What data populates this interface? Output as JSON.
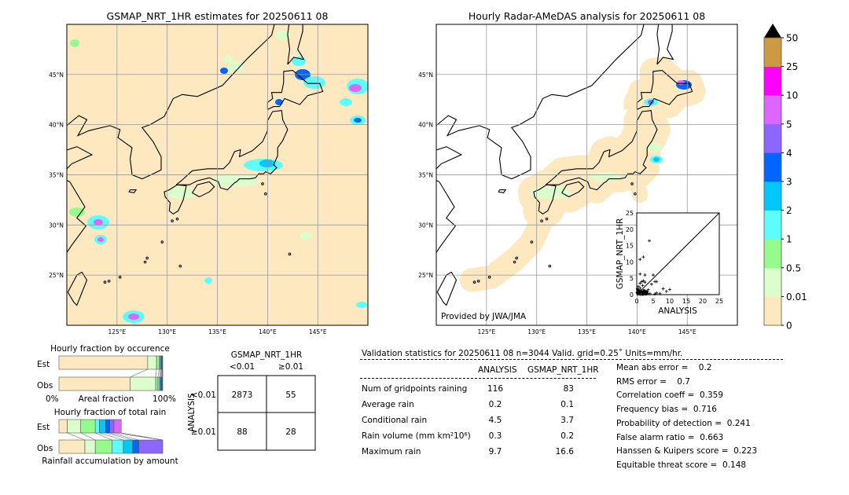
{
  "left_map": {
    "title": "GSMAP_NRT_1HR estimates for 20250611 08",
    "lon_labels": [
      "125°E",
      "130°E",
      "135°E",
      "140°E",
      "145°E"
    ],
    "lat_labels": [
      "45°N",
      "40°N",
      "35°N",
      "30°N",
      "25°N"
    ]
  },
  "right_map": {
    "title": "Hourly Radar-AMeDAS analysis for 20250611 08",
    "lon_labels": [
      "125°E",
      "130°E",
      "135°E",
      "140°E",
      "145°E"
    ],
    "lat_labels": [
      "45°N",
      "40°N",
      "35°N",
      "30°N",
      "25°N"
    ],
    "credit": "Provided by JWA/JMA"
  },
  "colorbar": {
    "labels": [
      "0",
      "0.01",
      "0.5",
      "1",
      "2",
      "3",
      "4",
      "5",
      "10",
      "25",
      "50"
    ],
    "colors": [
      "#fee8c0",
      "#dcfdcc",
      "#94fb8c",
      "#5dfdfd",
      "#00c8fd",
      "#0066ff",
      "#8c66ff",
      "#dd66ff",
      "#ff00ff",
      "#cd9a44"
    ],
    "extend_color": "#000000"
  },
  "chart_data": [
    {
      "type": "scatter",
      "xlabel": "ANALYSIS",
      "ylabel": "GSMAP_NRT_1HR",
      "xlim": [
        0,
        25
      ],
      "ylim": [
        0,
        25
      ],
      "ticks": [
        "0",
        "5",
        "10",
        "15",
        "20",
        "25"
      ],
      "points": [
        [
          1,
          10.8
        ],
        [
          2,
          11.5
        ],
        [
          3.8,
          16.5
        ],
        [
          1,
          6.3
        ],
        [
          2.5,
          6
        ],
        [
          5,
          6
        ],
        [
          1.5,
          4
        ],
        [
          2,
          4.2
        ],
        [
          2.5,
          3.8
        ],
        [
          5.5,
          4
        ],
        [
          6,
          4
        ],
        [
          1,
          3.5
        ],
        [
          4.5,
          3.2
        ],
        [
          8,
          1.8
        ],
        [
          10,
          1.6
        ],
        [
          9,
          1
        ],
        [
          6,
          0.5
        ],
        [
          3,
          0.8
        ],
        [
          1,
          2
        ],
        [
          0.5,
          1
        ],
        [
          0.3,
          0.5
        ],
        [
          2,
          0.5
        ],
        [
          1.5,
          0.2
        ],
        [
          4,
          0.3
        ],
        [
          7,
          0.3
        ],
        [
          0.5,
          2.5
        ],
        [
          1.2,
          1.2
        ],
        [
          0.8,
          0.3
        ],
        [
          2.8,
          0.2
        ],
        [
          3.5,
          1.5
        ],
        [
          0.2,
          1.8
        ],
        [
          1.8,
          2.8
        ],
        [
          5.5,
          0.2
        ],
        [
          0.4,
          0.1
        ],
        [
          1,
          0
        ]
      ]
    },
    {
      "type": "bar",
      "title": "Hourly fraction by occurence",
      "xlabel": "Areal fraction",
      "xtick_left": "0%",
      "xtick_right": "100%",
      "categories": [
        "Est",
        "Obs"
      ],
      "series_colors": [
        "#fee8c0",
        "#dcfdcc",
        "#94fb8c",
        "#5dfdfd",
        "#00c8fd",
        "#0066ff",
        "#8c66ff",
        "#dd66ff",
        "#ff00ff",
        "#cd9a44"
      ],
      "values": {
        "Est": [
          85.5,
          8.5,
          2.5,
          1.2,
          0.8,
          0.6,
          0.4,
          0.3,
          0.2,
          0
        ],
        "Obs": [
          68.5,
          24.7,
          2.2,
          1.6,
          1.0,
          0.8,
          0.5,
          0.4,
          0.3,
          0
        ]
      }
    },
    {
      "type": "bar",
      "title": "Hourly fraction of total rain",
      "xlabel": "Rainfall accumulation by amount",
      "categories": [
        "Est",
        "Obs"
      ],
      "values": {
        "Est": [
          8,
          13,
          14,
          4,
          6,
          4,
          4,
          7,
          0,
          0
        ],
        "Obs": [
          25,
          10,
          16,
          11,
          9,
          6,
          23,
          0,
          0,
          0
        ]
      }
    }
  ],
  "contingency": {
    "title": "GSMAP_NRT_1HR",
    "col_labels": [
      "<0.01",
      "≥0.01"
    ],
    "row_axis": "ANALYSIS",
    "row_labels": [
      "<0.01",
      "≥0.01"
    ],
    "cells": [
      [
        "2873",
        "55"
      ],
      [
        "88",
        "28"
      ]
    ]
  },
  "stats": {
    "header": "Validation statistics for 20250611 08  n=3044 Valid. grid=0.25˚ Units=mm/hr.",
    "col_headers": [
      "ANALYSIS",
      "GSMAP_NRT_1HR"
    ],
    "rows": [
      {
        "label": "Num of gridpoints raining",
        "a": "116",
        "b": "83"
      },
      {
        "label": "Average rain",
        "a": "0.2",
        "b": "0.1"
      },
      {
        "label": "Conditional rain",
        "a": "4.5",
        "b": "3.7"
      },
      {
        "label": "Rain volume (mm km²10⁶)",
        "a": "0.3",
        "b": "0.2"
      },
      {
        "label": "Maximum rain",
        "a": "9.7",
        "b": "16.6"
      }
    ],
    "scores": [
      "Mean abs error =    0.2",
      "RMS error =    0.7",
      "Correlation coeff =  0.359",
      "Frequency bias =  0.716",
      "Probability of detection =  0.241",
      "False alarm ratio =  0.663",
      "Hanssen & Kuipers score =  0.223",
      "Equitable threat score =  0.148"
    ]
  }
}
